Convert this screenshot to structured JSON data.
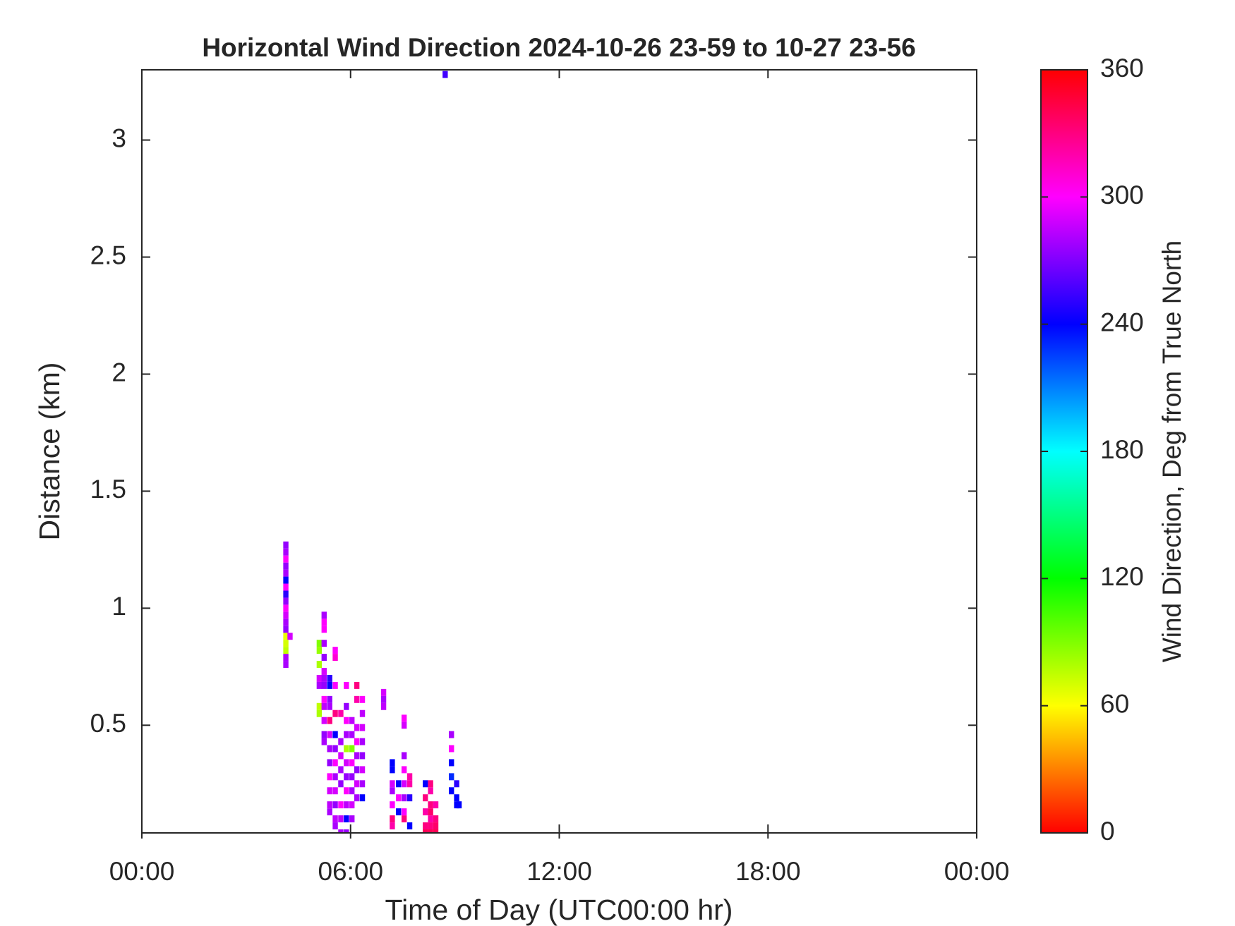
{
  "chart_data": {
    "type": "heatmap",
    "title": "Horizontal Wind Direction 2024-10-26 23-59 to 10-27 23-56",
    "x_label": "Time of Day (UTC00:00 hr)",
    "y_label": "Distance (km)",
    "colorbar_label": "Wind Direction, Deg from True North",
    "colormap": "hsv",
    "xlim": [
      0,
      24
    ],
    "xticks": [
      {
        "value": 0,
        "label": "00:00"
      },
      {
        "value": 6,
        "label": "06:00"
      },
      {
        "value": 12,
        "label": "12:00"
      },
      {
        "value": 18,
        "label": "18:00"
      },
      {
        "value": 24,
        "label": "00:00"
      }
    ],
    "ylim": [
      0.04,
      3.3
    ],
    "yticks": [
      0.5,
      1,
      1.5,
      2,
      2.5,
      3
    ],
    "clim": [
      0,
      360
    ],
    "cticks": [
      0,
      60,
      120,
      180,
      240,
      300,
      360
    ],
    "columns": [
      {
        "x": 4.14,
        "y": [
          0.76,
          0.79,
          0.82,
          0.85,
          0.88,
          0.91,
          0.94,
          0.97,
          1.0,
          1.03,
          1.06,
          1.09,
          1.12,
          1.15,
          1.18,
          1.21,
          1.24,
          1.27
        ],
        "values": [
          280,
          280,
          75,
          70,
          65,
          275,
          280,
          290,
          300,
          275,
          250,
          300,
          240,
          280,
          275,
          300,
          280,
          275
        ]
      },
      {
        "x": 4.26,
        "y": [
          0.88
        ],
        "values": [
          290
        ]
      },
      {
        "x": 5.1,
        "y": [
          0.55,
          0.58,
          0.67,
          0.7,
          0.76,
          0.82,
          0.85
        ],
        "values": [
          80,
          75,
          280,
          290,
          80,
          85,
          90
        ]
      },
      {
        "x": 5.24,
        "y": [
          0.43,
          0.46,
          0.52,
          0.58,
          0.61,
          0.67,
          0.7,
          0.73,
          0.79,
          0.85,
          0.91,
          0.94,
          0.97
        ],
        "values": [
          280,
          275,
          290,
          285,
          300,
          275,
          280,
          290,
          275,
          280,
          300,
          300,
          280
        ]
      },
      {
        "x": 5.4,
        "y": [
          0.13,
          0.16,
          0.22,
          0.28,
          0.34,
          0.4,
          0.46,
          0.52,
          0.58,
          0.61,
          0.67,
          0.7
        ],
        "values": [
          280,
          285,
          290,
          300,
          275,
          280,
          290,
          330,
          280,
          275,
          240,
          250
        ]
      },
      {
        "x": 5.56,
        "y": [
          0.07,
          0.1,
          0.16,
          0.22,
          0.28,
          0.34,
          0.4,
          0.46,
          0.55,
          0.67,
          0.79,
          0.82
        ],
        "values": [
          280,
          285,
          275,
          290,
          280,
          300,
          275,
          240,
          330,
          300,
          310,
          300
        ]
      },
      {
        "x": 5.72,
        "y": [
          0.04,
          0.1,
          0.16,
          0.25,
          0.31,
          0.37,
          0.43,
          0.55
        ],
        "values": [
          280,
          285,
          300,
          275,
          280,
          290,
          280,
          320
        ]
      },
      {
        "x": 5.88,
        "y": [
          0.04,
          0.1,
          0.16,
          0.22,
          0.28,
          0.34,
          0.4,
          0.46,
          0.52,
          0.58,
          0.67
        ],
        "values": [
          275,
          240,
          285,
          300,
          275,
          290,
          80,
          280,
          300,
          275,
          300
        ]
      },
      {
        "x": 6.04,
        "y": [
          0.1,
          0.16,
          0.22,
          0.28,
          0.34,
          0.4,
          0.46,
          0.52
        ],
        "values": [
          280,
          290,
          280,
          275,
          300,
          90,
          280,
          285
        ]
      },
      {
        "x": 6.18,
        "y": [
          0.19,
          0.25,
          0.31,
          0.37,
          0.43,
          0.49,
          0.61,
          0.67
        ],
        "values": [
          280,
          290,
          275,
          280,
          300,
          290,
          320,
          330
        ]
      },
      {
        "x": 6.34,
        "y": [
          0.19,
          0.25,
          0.31,
          0.37,
          0.43,
          0.49,
          0.55,
          0.61
        ],
        "values": [
          240,
          280,
          290,
          275,
          280,
          290,
          285,
          300
        ]
      },
      {
        "x": 6.95,
        "y": [
          0.58,
          0.61,
          0.64
        ],
        "values": [
          285,
          280,
          290
        ]
      },
      {
        "x": 7.2,
        "y": [
          0.07,
          0.1,
          0.16,
          0.22,
          0.25,
          0.31,
          0.34
        ],
        "values": [
          320,
          330,
          300,
          280,
          290,
          240,
          240
        ]
      },
      {
        "x": 7.38,
        "y": [
          0.13,
          0.19,
          0.25
        ],
        "values": [
          240,
          300,
          240
        ]
      },
      {
        "x": 7.54,
        "y": [
          0.1,
          0.13,
          0.19,
          0.25,
          0.31,
          0.37,
          0.5,
          0.53
        ],
        "values": [
          330,
          300,
          280,
          290,
          300,
          280,
          290,
          300
        ]
      },
      {
        "x": 7.7,
        "y": [
          0.07,
          0.19,
          0.25,
          0.28
        ],
        "values": [
          240,
          250,
          320,
          320
        ]
      },
      {
        "x": 8.15,
        "y": [
          0.04,
          0.07,
          0.13,
          0.19,
          0.25
        ],
        "values": [
          340,
          330,
          320,
          330,
          240
        ]
      },
      {
        "x": 8.3,
        "y": [
          0.04,
          0.07,
          0.1,
          0.13,
          0.16,
          0.22,
          0.25
        ],
        "values": [
          340,
          330,
          320,
          335,
          330,
          320,
          330
        ]
      },
      {
        "x": 8.45,
        "y": [
          0.04,
          0.07,
          0.1,
          0.16
        ],
        "values": [
          340,
          335,
          330,
          320
        ]
      },
      {
        "x": 8.72,
        "y": [
          3.28
        ],
        "values": [
          255
        ]
      },
      {
        "x": 8.9,
        "y": [
          0.22,
          0.28,
          0.34,
          0.4,
          0.46
        ],
        "values": [
          240,
          230,
          240,
          300,
          280
        ]
      },
      {
        "x": 9.05,
        "y": [
          0.16,
          0.19,
          0.25
        ],
        "values": [
          240,
          240,
          250
        ]
      },
      {
        "x": 9.12,
        "y": [
          0.16
        ],
        "values": [
          240
        ]
      }
    ]
  }
}
